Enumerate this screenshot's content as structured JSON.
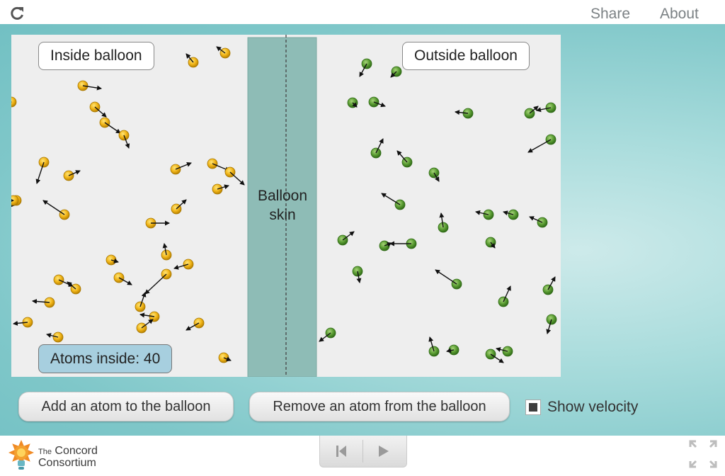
{
  "topbar": {
    "reload_icon": "reload-icon",
    "share_label": "Share",
    "about_label": "About"
  },
  "simulation": {
    "inside_label": "Inside balloon",
    "outside_label": "Outside balloon",
    "membrane_label_line1": "Balloon",
    "membrane_label_line2": "skin",
    "atoms_inside_text": "Atoms inside: 40",
    "atoms_inside_count": 40,
    "colors": {
      "inside_atom": "#f2b619",
      "outside_atom": "#5c9e34",
      "membrane": "#8ebcb6",
      "background": "#eeeeee"
    }
  },
  "controls": {
    "add_label": "Add an atom to the balloon",
    "remove_label": "Remove an atom from the balloon",
    "show_velocity_label": "Show velocity",
    "show_velocity_checked": true
  },
  "footer": {
    "logo_line1_small": "The",
    "logo_line1": "Concord",
    "logo_line2": "Consortium",
    "reset_icon": "step-back-icon",
    "play_icon": "play-icon",
    "fullscreen_icon": "fullscreen-icon"
  }
}
